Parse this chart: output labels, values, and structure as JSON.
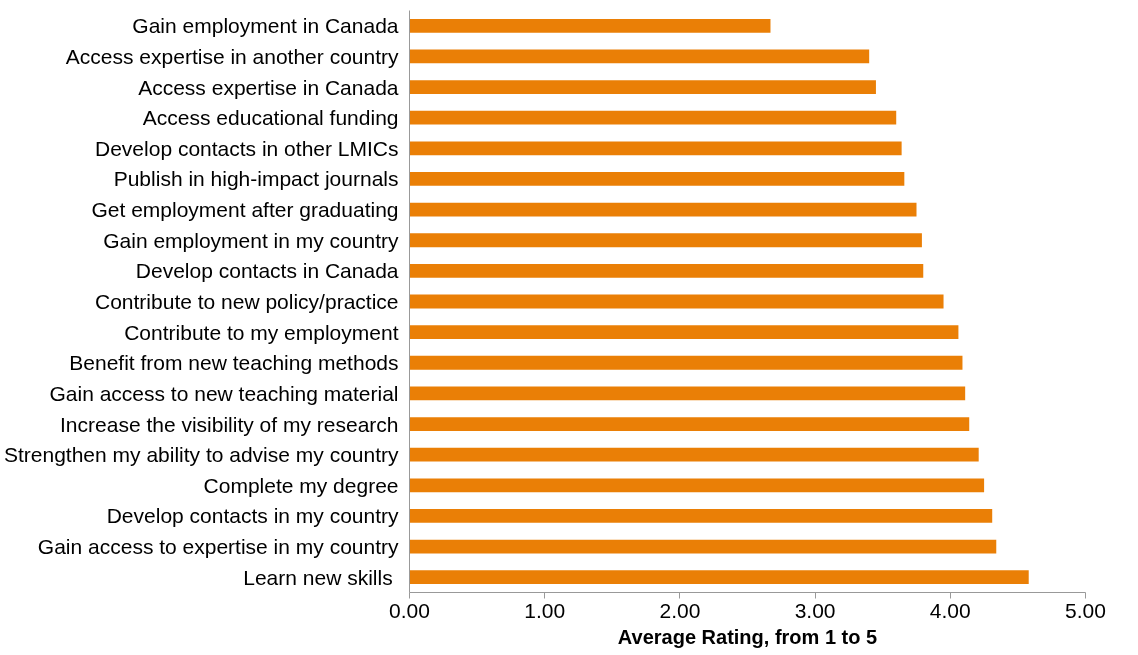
{
  "chart_data": {
    "type": "bar",
    "orientation": "horizontal",
    "xlabel": "Average Rating, from 1 to 5",
    "categories": [
      "Gain employment in Canada",
      "Access expertise in another country",
      "Access expertise in Canada",
      "Access educational funding",
      "Develop contacts in other LMICs",
      "Publish in high-impact journals",
      "Get employment after graduating",
      "Gain employment in my country",
      "Develop contacts in Canada",
      "Contribute to new policy/practice",
      "Contribute to my employment",
      "Benefit from new teaching methods",
      "Gain access to new teaching material",
      "Increase the visibility of my research",
      "Strengthen my ability to advise my country",
      "Complete my degree",
      "Develop contacts in my country",
      "Gain access to expertise in my country",
      "Learn new  skills"
    ],
    "values": [
      2.67,
      3.4,
      3.45,
      3.6,
      3.64,
      3.66,
      3.75,
      3.79,
      3.8,
      3.95,
      4.06,
      4.09,
      4.11,
      4.14,
      4.21,
      4.25,
      4.31,
      4.34,
      4.58
    ],
    "color": "#ea7f06",
    "xlim": [
      0,
      5
    ],
    "xticks": [
      {
        "value": 0,
        "label": "0.00"
      },
      {
        "value": 1,
        "label": "1.00"
      },
      {
        "value": 2,
        "label": "2.00"
      },
      {
        "value": 3,
        "label": "3.00"
      },
      {
        "value": 4,
        "label": "4.00"
      },
      {
        "value": 5,
        "label": "5.00"
      }
    ],
    "grid": false
  }
}
